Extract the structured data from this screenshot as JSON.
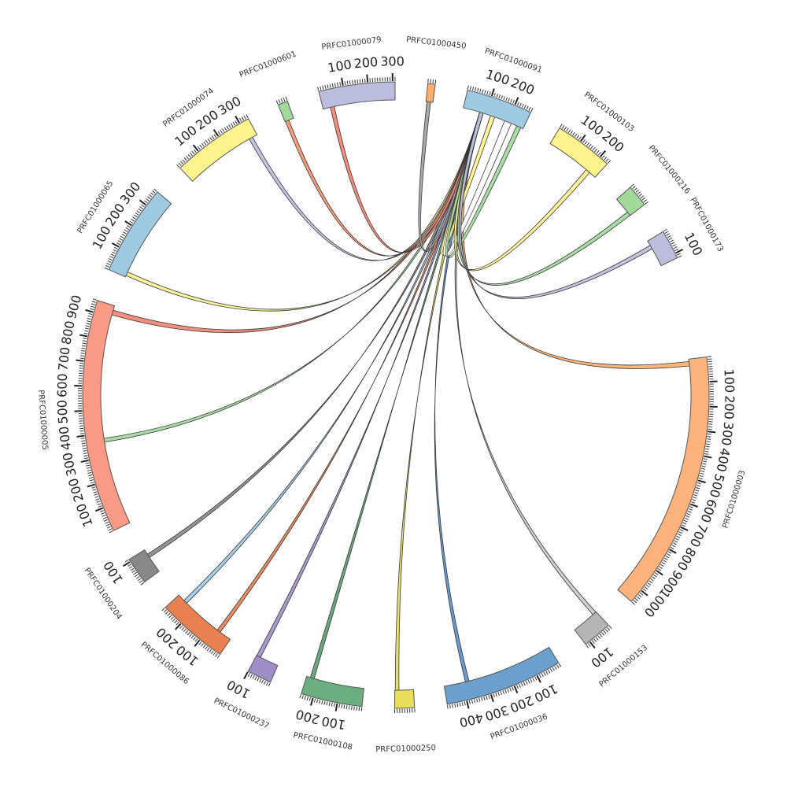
{
  "segments": [
    {
      "name": "PRFC01000003",
      "length": 1060,
      "color": "#fdb27b"
    },
    {
      "name": "PRFC01000153",
      "length": 120,
      "color": "#b5b5b5"
    },
    {
      "name": "PRFC01000036",
      "length": 480,
      "color": "#6a9fce"
    },
    {
      "name": "PRFC01000250",
      "length": 80,
      "color": "#e8de5c"
    },
    {
      "name": "PRFC01000108",
      "length": 250,
      "color": "#6bae80"
    },
    {
      "name": "PRFC01000237",
      "length": 100,
      "color": "#9d8ec7"
    },
    {
      "name": "PRFC01000086",
      "length": 290,
      "color": "#e8814f"
    },
    {
      "name": "PRFC01000204",
      "length": 110,
      "color": "#888888"
    },
    {
      "name": "PRFC01000005",
      "length": 950,
      "color": "#f89a85"
    },
    {
      "name": "PRFC01000065",
      "length": 370,
      "color": "#9ecae1"
    },
    {
      "name": "PRFC01000074",
      "length": 340,
      "color": "#fef48e"
    },
    {
      "name": "PRFC01000601",
      "length": 40,
      "color": "#a1d99b"
    },
    {
      "name": "PRFC01000079",
      "length": 310,
      "color": "#bcbddc"
    },
    {
      "name": "PRFC01000450",
      "length": 30,
      "color": "#fdae6b"
    },
    {
      "name": "PRFC01000091",
      "length": 270,
      "color": "#9ecae1"
    },
    {
      "name": "PRFC01000103",
      "length": 240,
      "color": "#fef48e"
    },
    {
      "name": "PRFC01000216",
      "length": 90,
      "color": "#a1d99b"
    },
    {
      "name": "PRFC01000173",
      "length": 120,
      "color": "#bcbddc"
    }
  ],
  "links": [
    {
      "target": "PRFC01000003",
      "pos": 20,
      "width": 8,
      "color": "#fdae6b"
    },
    {
      "target": "PRFC01000153",
      "pos": 10,
      "width": 6,
      "color": "#c8c8c8"
    },
    {
      "target": "PRFC01000036",
      "pos": 380,
      "width": 5,
      "color": "#5b8fc9"
    },
    {
      "target": "PRFC01000250",
      "pos": 70,
      "width": 5,
      "color": "#e8de5c"
    },
    {
      "target": "PRFC01000108",
      "pos": 225,
      "width": 6,
      "color": "#5a9e6f"
    },
    {
      "target": "PRFC01000237",
      "pos": 90,
      "width": 7,
      "color": "#9d8ec7"
    },
    {
      "target": "PRFC01000086",
      "pos": 60,
      "width": 5,
      "color": "#e8814f"
    },
    {
      "target": "PRFC01000086",
      "pos": 250,
      "width": 6,
      "color": "#9ecae1"
    },
    {
      "target": "PRFC01000204",
      "pos": 80,
      "width": 6,
      "color": "#888888"
    },
    {
      "target": "PRFC01000005",
      "pos": 370,
      "width": 5,
      "color": "#a1d99b"
    },
    {
      "target": "PRFC01000005",
      "pos": 920,
      "width": 10,
      "color": "#f4826e"
    },
    {
      "target": "PRFC01000065",
      "pos": 15,
      "width": 6,
      "color": "#fef48e"
    },
    {
      "target": "PRFC01000074",
      "pos": 310,
      "width": 6,
      "color": "#bcbddc"
    },
    {
      "target": "PRFC01000601",
      "pos": 10,
      "width": 5,
      "color": "#f4926e"
    },
    {
      "target": "PRFC01000079",
      "pos": 40,
      "width": 6,
      "color": "#f4826e"
    },
    {
      "target": "PRFC01000450",
      "pos": 12,
      "width": 5,
      "color": "#9e9e9e"
    },
    {
      "target": "PRFC01000091",
      "pos": 130,
      "width": 8,
      "color": "#fef48e"
    },
    {
      "target": "PRFC01000091",
      "pos": 200,
      "width": 20,
      "color": "#ffffff"
    },
    {
      "target": "PRFC01000091",
      "pos": 250,
      "width": 8,
      "color": "#a1d99b"
    },
    {
      "target": "PRFC01000103",
      "pos": 200,
      "width": 8,
      "color": "#fef48e"
    },
    {
      "target": "PRFC01000216",
      "pos": 80,
      "width": 7,
      "color": "#a1d99b"
    },
    {
      "target": "PRFC01000173",
      "pos": 30,
      "width": 6,
      "color": "#bcbddc"
    }
  ],
  "link_source": {
    "segment": "PRFC01000091",
    "pos": 80
  },
  "tick_spacing_minor": 10,
  "tick_spacing_major": 100
}
